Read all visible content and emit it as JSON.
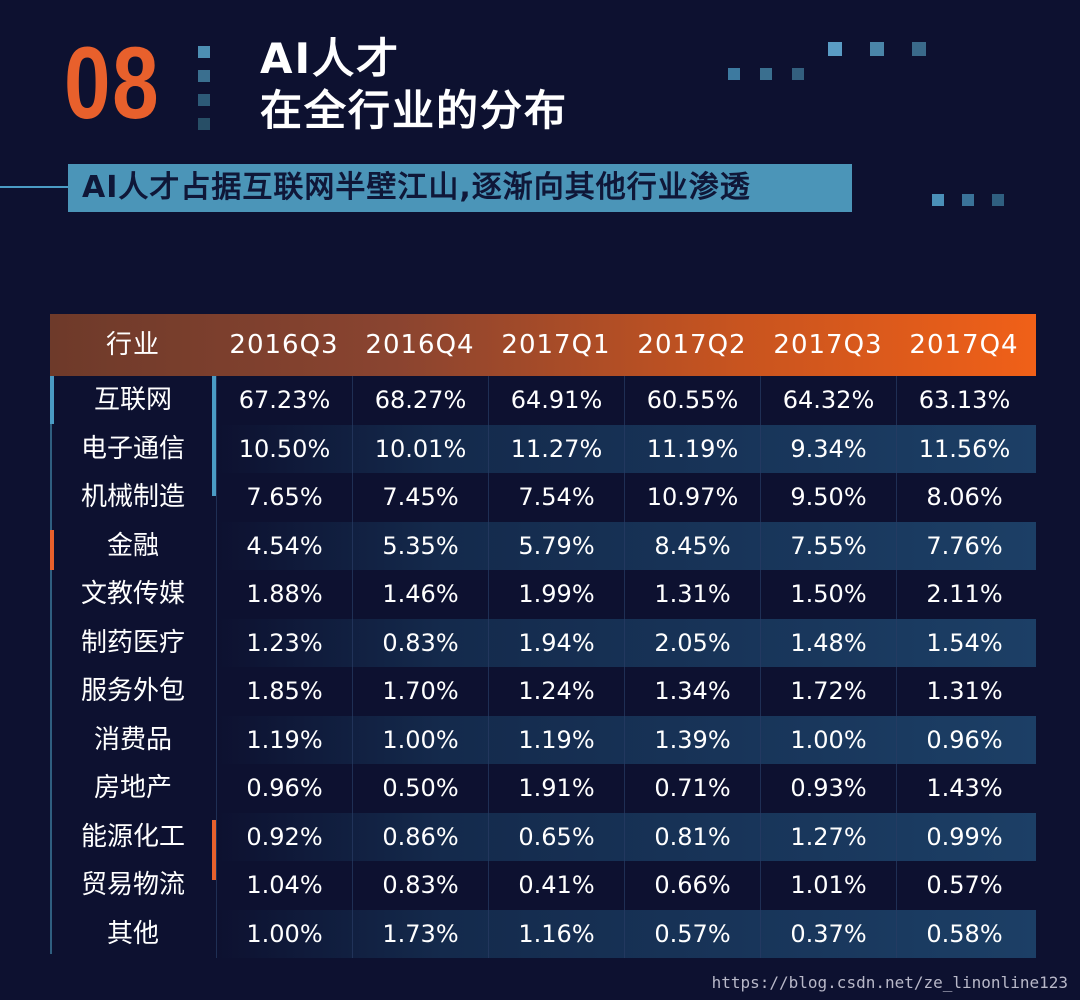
{
  "header": {
    "number": "08",
    "title_line1": "AI人才",
    "title_line2": "在全行业的分布",
    "subtitle": "AI人才占据互联网半壁江山,逐渐向其他行业渗透"
  },
  "colors": {
    "accent_orange": "#e8602c",
    "accent_blue": "#4b95b8",
    "background": "#0d1130"
  },
  "table": {
    "columns": [
      "行业",
      "2016Q3",
      "2016Q4",
      "2017Q1",
      "2017Q2",
      "2017Q3",
      "2017Q4"
    ],
    "rows": [
      {
        "industry": "互联网",
        "values": [
          "67.23%",
          "68.27%",
          "64.91%",
          "60.55%",
          "64.32%",
          "63.13%"
        ]
      },
      {
        "industry": "电子通信",
        "values": [
          "10.50%",
          "10.01%",
          "11.27%",
          "11.19%",
          "9.34%",
          "11.56%"
        ]
      },
      {
        "industry": "机械制造",
        "values": [
          "7.65%",
          "7.45%",
          "7.54%",
          "10.97%",
          "9.50%",
          "8.06%"
        ]
      },
      {
        "industry": "金融",
        "values": [
          "4.54%",
          "5.35%",
          "5.79%",
          "8.45%",
          "7.55%",
          "7.76%"
        ]
      },
      {
        "industry": "文教传媒",
        "values": [
          "1.88%",
          "1.46%",
          "1.99%",
          "1.31%",
          "1.50%",
          "2.11%"
        ]
      },
      {
        "industry": "制药医疗",
        "values": [
          "1.23%",
          "0.83%",
          "1.94%",
          "2.05%",
          "1.48%",
          "1.54%"
        ]
      },
      {
        "industry": "服务外包",
        "values": [
          "1.85%",
          "1.70%",
          "1.24%",
          "1.34%",
          "1.72%",
          "1.31%"
        ]
      },
      {
        "industry": "消费品",
        "values": [
          "1.19%",
          "1.00%",
          "1.19%",
          "1.39%",
          "1.00%",
          "0.96%"
        ]
      },
      {
        "industry": "房地产",
        "values": [
          "0.96%",
          "0.50%",
          "1.91%",
          "0.71%",
          "0.93%",
          "1.43%"
        ]
      },
      {
        "industry": "能源化工",
        "values": [
          "0.92%",
          "0.86%",
          "0.65%",
          "0.81%",
          "1.27%",
          "0.99%"
        ]
      },
      {
        "industry": "贸易物流",
        "values": [
          "1.04%",
          "0.83%",
          "0.41%",
          "0.66%",
          "1.01%",
          "0.57%"
        ]
      },
      {
        "industry": "其他",
        "values": [
          "1.00%",
          "1.73%",
          "1.16%",
          "0.57%",
          "0.37%",
          "0.58%"
        ]
      }
    ]
  },
  "watermark": "https://blog.csdn.net/ze_linonline123"
}
